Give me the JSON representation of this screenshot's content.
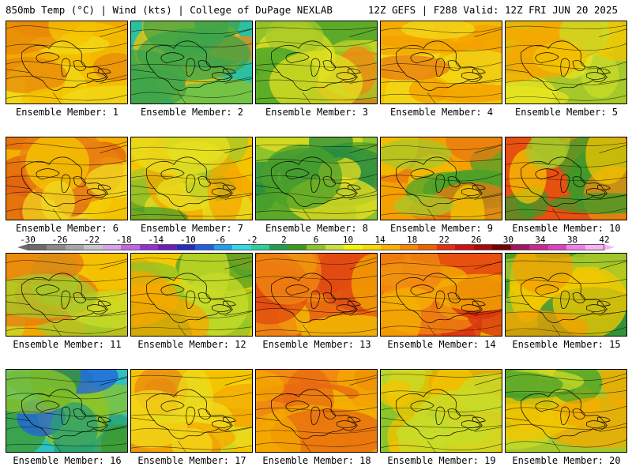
{
  "header": {
    "title_left": "850mb Temp (°C) | Wind (kts) | College of DuPage NEXLAB",
    "title_right": "12Z GEFS | F288 Valid: 12Z FRI JUN 20 2025"
  },
  "colorbar": {
    "labels": [
      "-30",
      "-26",
      "-22",
      "-18",
      "-14",
      "-10",
      "-6",
      "-2",
      "2",
      "6",
      "10",
      "14",
      "18",
      "22",
      "26",
      "30",
      "34",
      "38",
      "42"
    ],
    "colors": [
      "#6b6b6b",
      "#8a8a8a",
      "#a7a7a7",
      "#c6c6c6",
      "#d8a2e8",
      "#c266e0",
      "#9a2fd0",
      "#6a22b6",
      "#2a2bc0",
      "#2060e0",
      "#20a0f0",
      "#38d7e4",
      "#2ecf9a",
      "#20a04a",
      "#3c9a1a",
      "#8cc42a",
      "#c8e040",
      "#f4f400",
      "#fcd800",
      "#fcb000",
      "#f88800",
      "#f26000",
      "#e43010",
      "#d21010",
      "#a80808",
      "#7a0000",
      "#a01860",
      "#c82890",
      "#e040c0",
      "#f080e8",
      "#f8b4f0"
    ]
  },
  "members": [
    {
      "label": "Ensemble Member: 1",
      "palette": [
        "#f4a800",
        "#f4c400",
        "#f2da1a",
        "#f4b200",
        "#e88a0a"
      ]
    },
    {
      "label": "Ensemble Member: 2",
      "palette": [
        "#2cc0a0",
        "#3ea44a",
        "#8cc42a",
        "#f4c400",
        "#f08a10"
      ]
    },
    {
      "label": "Ensemble Member: 3",
      "palette": [
        "#5caa28",
        "#a6c82a",
        "#e2e020",
        "#3ca02a",
        "#f08a10"
      ]
    },
    {
      "label": "Ensemble Member: 4",
      "palette": [
        "#f4c400",
        "#f4a000",
        "#e87a10",
        "#f2da1a",
        "#f4b200"
      ]
    },
    {
      "label": "Ensemble Member: 5",
      "palette": [
        "#a6c82a",
        "#c8dc28",
        "#e8e420",
        "#f4c400",
        "#f4a800"
      ]
    },
    {
      "label": "Ensemble Member: 6",
      "palette": [
        "#f4b000",
        "#ea8210",
        "#f4c800",
        "#e06010",
        "#f2d820"
      ]
    },
    {
      "label": "Ensemble Member: 7",
      "palette": [
        "#f4c400",
        "#e8e020",
        "#a6c82a",
        "#4c9e2a",
        "#f4a800"
      ]
    },
    {
      "label": "Ensemble Member: 8",
      "palette": [
        "#8cc42a",
        "#c8dc28",
        "#4ca02a",
        "#2a8e40",
        "#e8e020"
      ]
    },
    {
      "label": "Ensemble Member: 9",
      "palette": [
        "#f4a000",
        "#f4c800",
        "#a6c82a",
        "#e87a10",
        "#4ca02a"
      ]
    },
    {
      "label": "Ensemble Member: 10",
      "palette": [
        "#e65010",
        "#f08a10",
        "#f4c400",
        "#a6c82a",
        "#3c9a2a"
      ]
    },
    {
      "label": "Ensemble Member: 11",
      "palette": [
        "#f4a800",
        "#f4c800",
        "#c8dc28",
        "#e87a10",
        "#a6c82a"
      ]
    },
    {
      "label": "Ensemble Member: 12",
      "palette": [
        "#f4c800",
        "#c8dc28",
        "#8cc42a",
        "#4ca02a",
        "#f4a800"
      ]
    },
    {
      "label": "Ensemble Member: 13",
      "palette": [
        "#ea6a10",
        "#f08a10",
        "#f4a800",
        "#e04a10",
        "#f4c400"
      ]
    },
    {
      "label": "Ensemble Member: 14",
      "palette": [
        "#e85010",
        "#f08a10",
        "#f4b000",
        "#d83010",
        "#f4c800"
      ]
    },
    {
      "label": "Ensemble Member: 15",
      "palette": [
        "#4ca02a",
        "#a6c82a",
        "#f4c800",
        "#f4a000",
        "#2a8e40"
      ]
    },
    {
      "label": "Ensemble Member: 16",
      "palette": [
        "#30c0c0",
        "#2aa070",
        "#3c9a2a",
        "#8cc42a",
        "#2060e0"
      ]
    },
    {
      "label": "Ensemble Member: 17",
      "palette": [
        "#f4c400",
        "#f4a800",
        "#c8dc28",
        "#e88a10",
        "#f2da1a"
      ]
    },
    {
      "label": "Ensemble Member: 18",
      "palette": [
        "#f08a10",
        "#f4a800",
        "#e86a10",
        "#f4c400",
        "#e04a10"
      ]
    },
    {
      "label": "Ensemble Member: 19",
      "palette": [
        "#8cc42a",
        "#c8dc28",
        "#f4c400",
        "#4ca02a",
        "#f4a800"
      ]
    },
    {
      "label": "Ensemble Member: 20",
      "palette": [
        "#a6c82a",
        "#c8dc28",
        "#f4c400",
        "#f4a800",
        "#4ca02a"
      ]
    }
  ]
}
